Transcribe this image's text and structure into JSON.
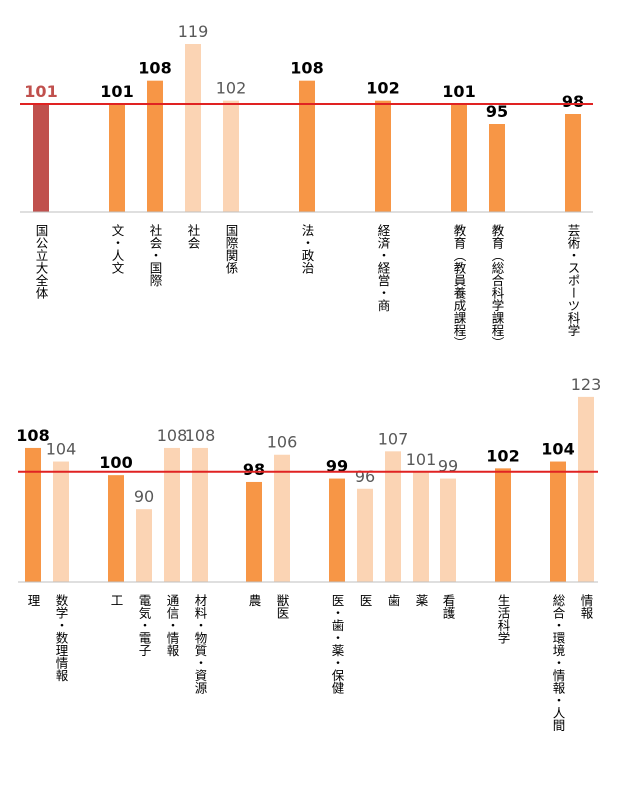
{
  "chart_data": [
    {
      "type": "bar",
      "categories": [
        "国公立大全体",
        "文・人文",
        "社会・国際",
        "社会",
        "国際関係",
        "法・政治",
        "経済・経営・商",
        "教育（教員養成課程）",
        "教育（総合科学課程）",
        "芸術・スポーツ科学"
      ],
      "values": [
        101,
        101,
        108,
        119,
        102,
        108,
        102,
        101,
        95,
        98
      ],
      "colors": [
        "#c0504d",
        "#f79646",
        "#f79646",
        "#fbd4b4",
        "#fbd4b4",
        "#f79646",
        "#f79646",
        "#f79646",
        "#f79646",
        "#f79646"
      ],
      "reference": 101,
      "reference_color": "#e02222",
      "ylim": [
        68.6,
        126.2
      ]
    },
    {
      "type": "bar",
      "categories": [
        "理",
        "数学・数理情報",
        "工",
        "電気・電子",
        "通信・情報",
        "材料・物質・資源",
        "農",
        "獣医",
        "医・歯・薬・保健",
        "医",
        "歯",
        "薬",
        "看護",
        "生活科学",
        "総合・環境・情報・人間",
        "情報"
      ],
      "values": [
        108,
        104,
        100,
        90,
        108,
        108,
        98,
        106,
        99,
        96,
        107,
        101,
        99,
        102,
        104,
        123
      ],
      "colors": [
        "#f79646",
        "#fbd4b4",
        "#f79646",
        "#fbd4b4",
        "#fbd4b4",
        "#fbd4b4",
        "#f79646",
        "#fbd4b4",
        "#f79646",
        "#fbd4b4",
        "#fbd4b4",
        "#fbd4b4",
        "#fbd4b4",
        "#f79646",
        "#f79646",
        "#fbd4b4"
      ],
      "reference": 101,
      "reference_color": "#e02222",
      "ylim": [
        68.6,
        126.2
      ]
    }
  ]
}
